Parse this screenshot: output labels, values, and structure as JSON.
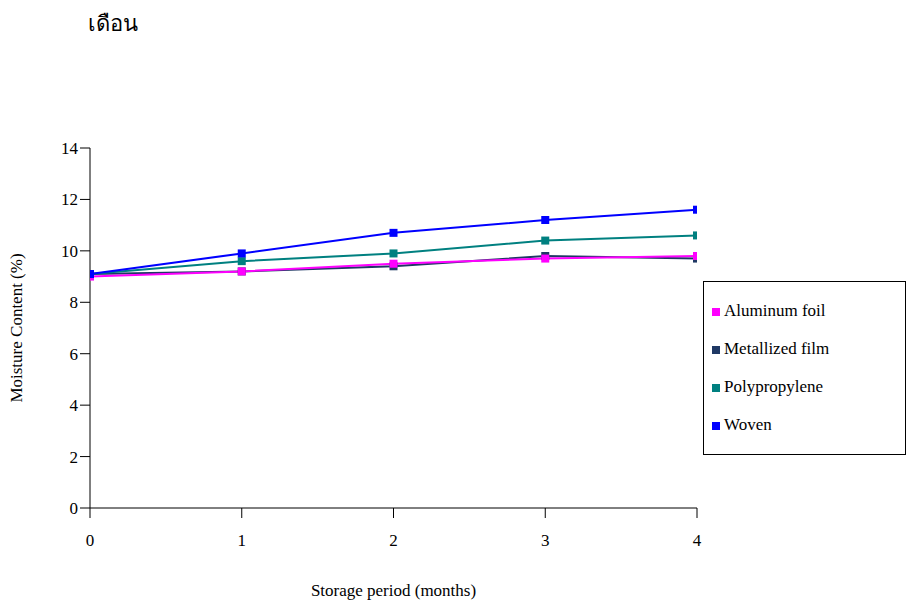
{
  "chart_data": {
    "type": "line",
    "annotations": [
      "เดือน"
    ],
    "x_label": "Storage period (months)",
    "y_label": "Moisture Content (%)",
    "x": [
      0,
      1,
      2,
      3,
      4
    ],
    "xlim": [
      0,
      4
    ],
    "xticks": [
      0,
      1,
      2,
      3,
      4
    ],
    "ylim": [
      0,
      14
    ],
    "yticks": [
      0,
      2,
      4,
      6,
      8,
      10,
      12,
      14
    ],
    "grid": false,
    "legend": "right",
    "marker": "square",
    "series": [
      {
        "name": "Metallized film",
        "color": "#1f3864",
        "values": [
          9.1,
          9.2,
          9.4,
          9.8,
          9.7
        ]
      },
      {
        "name": "Aluminum foil",
        "color": "#ff00ff",
        "values": [
          9.0,
          9.2,
          9.5,
          9.7,
          9.8
        ]
      },
      {
        "name": "Polypropylene",
        "color": "#008080",
        "values": [
          9.1,
          9.6,
          9.9,
          10.4,
          10.6
        ]
      },
      {
        "name": "Woven",
        "color": "#0000ff",
        "values": [
          9.1,
          9.9,
          10.7,
          11.2,
          11.6
        ]
      }
    ]
  }
}
